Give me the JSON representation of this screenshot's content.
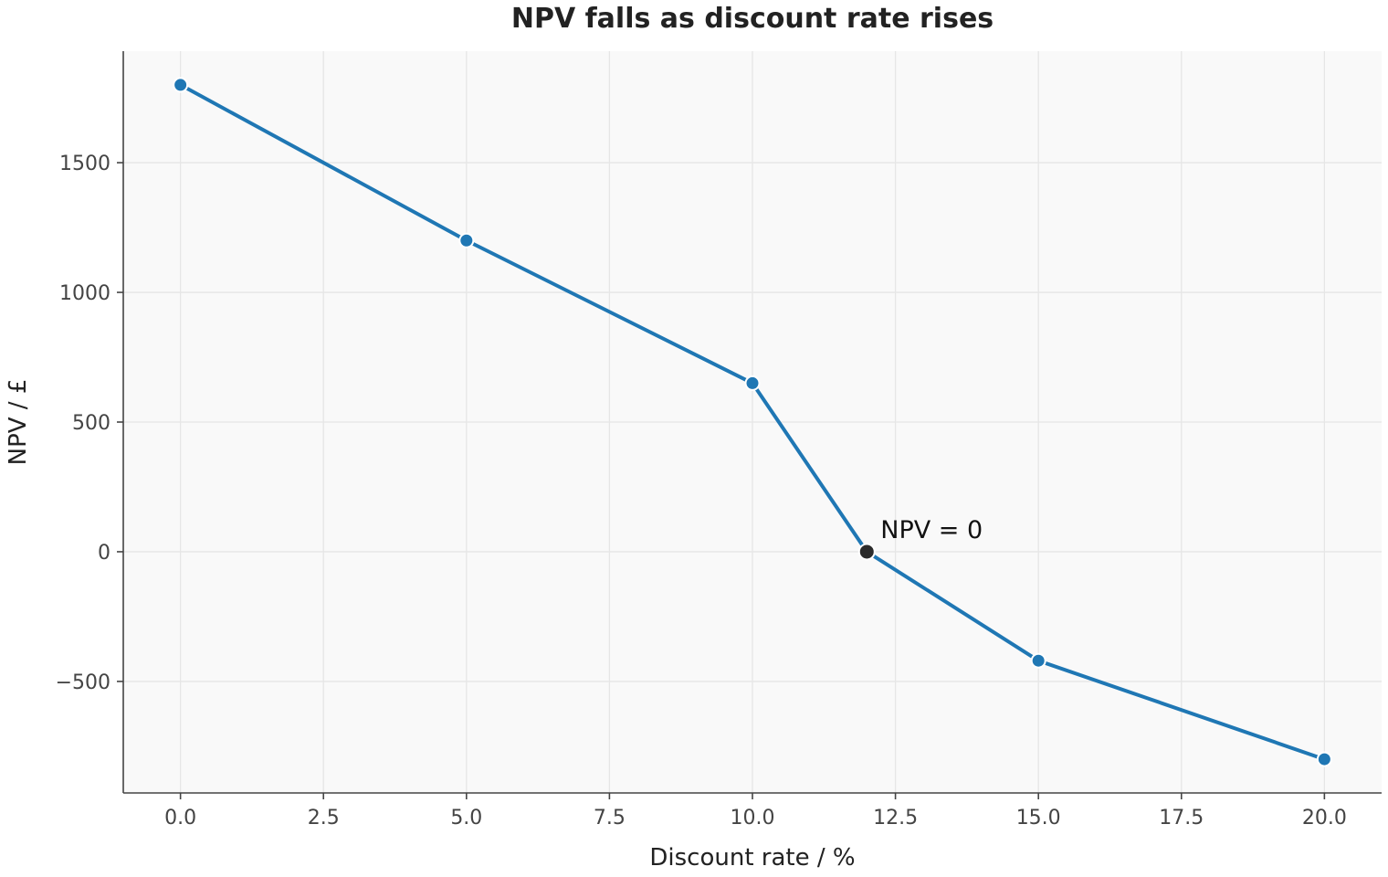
{
  "chart_data": {
    "type": "line",
    "title": "NPV falls as discount rate rises",
    "xlabel": "Discount rate / %",
    "ylabel": "NPV / £",
    "xlim": [
      -1,
      21
    ],
    "ylim": [
      -930,
      1930
    ],
    "x_ticks": [
      0,
      2.5,
      5,
      7.5,
      10,
      12.5,
      15,
      17.5,
      20
    ],
    "x_tick_labels": [
      "0.0",
      "2.5",
      "5.0",
      "7.5",
      "10.0",
      "12.5",
      "15.0",
      "17.5",
      "20.0"
    ],
    "y_ticks": [
      -500,
      0,
      500,
      1000,
      1500
    ],
    "y_tick_labels": [
      "−500",
      "0",
      "500",
      "1000",
      "1500"
    ],
    "grid": true,
    "series": [
      {
        "x": [
          0,
          5,
          10,
          12,
          15,
          20
        ],
        "y": [
          1800,
          1200,
          650,
          0,
          -420,
          -800
        ],
        "color": "#1f77b4",
        "marker_edge_color": "#ffffff"
      }
    ],
    "annotations": [
      {
        "x": 12,
        "y": 0,
        "text": "NPV = 0",
        "marker_color": "#2b2b2b"
      }
    ],
    "colors": {
      "plot_background": "#f9f9f9",
      "grid": "#e6e6e6",
      "axis": "#444444"
    }
  }
}
